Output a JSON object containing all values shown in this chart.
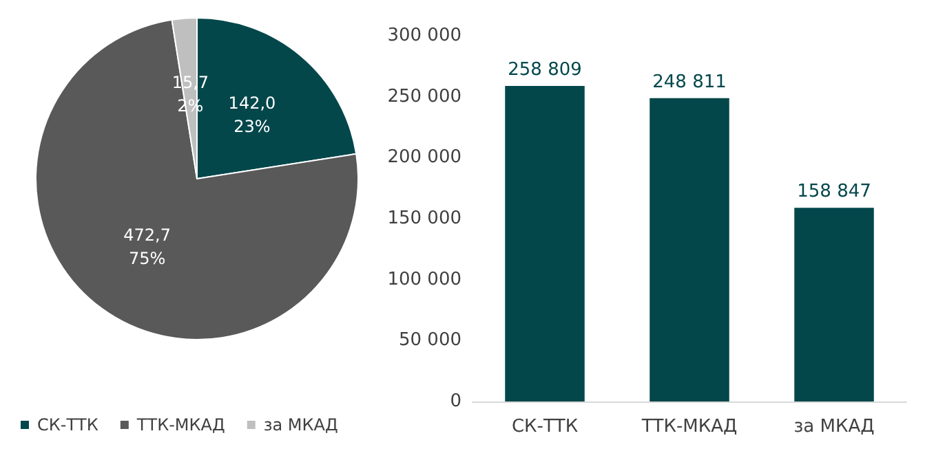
{
  "chart_data": [
    {
      "type": "pie",
      "categories": [
        "СК-ТТК",
        "ТТК-МКАД",
        "за МКАД"
      ],
      "values": [
        142.0,
        472.7,
        15.7
      ],
      "colors": [
        "#03474b",
        "#595959",
        "#bfbfbf"
      ],
      "value_labels": [
        "142,0\n23%",
        "472,7\n75%",
        "15,7\n2%"
      ],
      "legend": "bottom"
    },
    {
      "type": "bar",
      "categories": [
        "СК-ТТК",
        "ТТК-МКАД",
        "за МКАД"
      ],
      "values": [
        258809,
        248811,
        158847
      ],
      "color": "#03474b",
      "value_labels": [
        "258 809",
        "248 811",
        "158 847"
      ],
      "ylim": [
        0,
        300000
      ],
      "yticks": [
        0,
        {
          "value": 50000,
          "label": "50 000"
        },
        {
          "value": 100000,
          "label": "100 000"
        },
        {
          "value": 150000,
          "label": "150 000"
        },
        {
          "value": 200000,
          "label": "200 000"
        },
        {
          "value": 250000,
          "label": "250 000"
        },
        {
          "value": 300000,
          "label": "300 000"
        }
      ],
      "grid": false
    }
  ]
}
